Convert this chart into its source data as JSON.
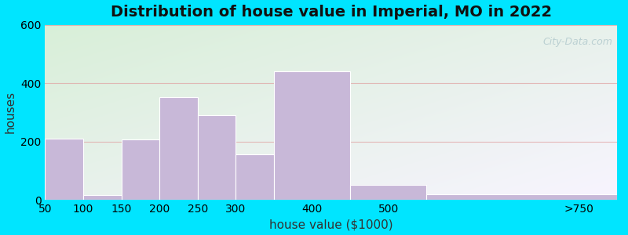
{
  "title": "Distribution of house value in Imperial, MO in 2022",
  "xlabel": "house value ($1000)",
  "ylabel": "houses",
  "bar_labels": [
    "50",
    "100",
    "150",
    "200",
    "250",
    "300",
    "400",
    "500",
    ">750"
  ],
  "bar_values": [
    210,
    15,
    208,
    352,
    290,
    155,
    440,
    50,
    18
  ],
  "bar_color": "#C8B8D8",
  "bar_edge_color": "#ffffff",
  "ylim": [
    0,
    600
  ],
  "yticks": [
    0,
    200,
    400,
    600
  ],
  "background_top_left": "#d8efd8",
  "background_bottom_right": "#f8f8ff",
  "outer_bg": "#00e5ff",
  "title_fontsize": 14,
  "axis_label_fontsize": 11,
  "tick_fontsize": 10,
  "watermark_text": "City-Data.com",
  "grid_color": "#e0a0a0",
  "grid_alpha": 0.7,
  "bar_edges": [
    50,
    100,
    150,
    200,
    250,
    300,
    350,
    450,
    550,
    800
  ],
  "tick_positions": [
    50,
    100,
    150,
    200,
    250,
    300,
    400,
    500,
    750
  ]
}
